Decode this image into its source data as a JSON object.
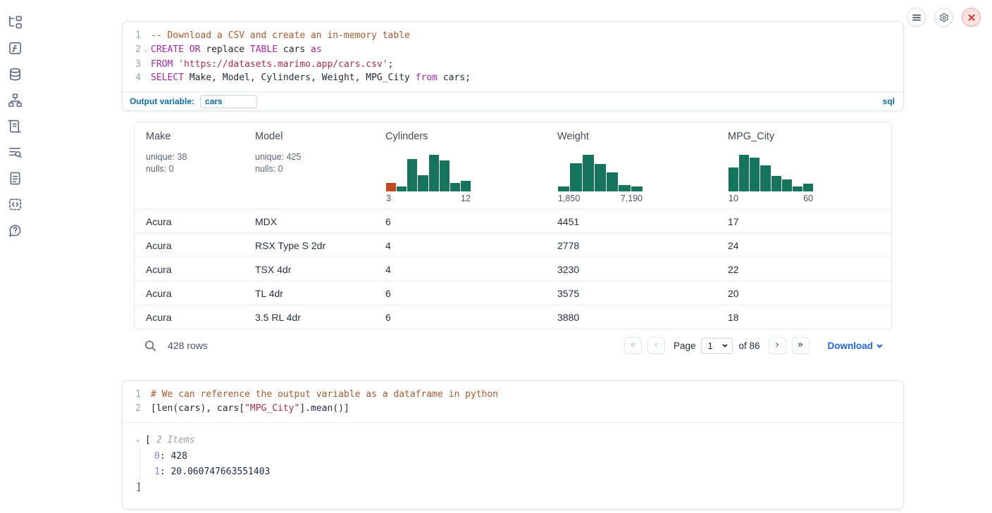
{
  "sidebar": {
    "items": [
      {
        "id": "file-explorer",
        "icon": "file-tree-icon"
      },
      {
        "id": "functions",
        "icon": "function-square-icon"
      },
      {
        "id": "data-sources",
        "icon": "database-icon"
      },
      {
        "id": "dependency-graph",
        "icon": "network-icon"
      },
      {
        "id": "scratchpad",
        "icon": "scroll-icon"
      },
      {
        "id": "logs",
        "icon": "text-search-icon"
      },
      {
        "id": "documentation",
        "icon": "file-text-icon"
      },
      {
        "id": "snippets",
        "icon": "code-box-icon"
      },
      {
        "id": "help",
        "icon": "help-circle-icon"
      }
    ]
  },
  "top_actions": {
    "menu_icon": "hamburger-menu-icon",
    "settings_icon": "gear-icon",
    "close_icon": "close-x-icon"
  },
  "sql_cell": {
    "lines": [
      {
        "num": "1",
        "fold": false,
        "tokens": [
          {
            "c": "comment",
            "t": "-- Download a CSV and create an in-memory table"
          }
        ]
      },
      {
        "num": "2",
        "fold": true,
        "tokens": [
          {
            "c": "kw",
            "t": "CREATE"
          },
          {
            "c": "plain",
            "t": " "
          },
          {
            "c": "kw",
            "t": "OR"
          },
          {
            "c": "plain",
            "t": " replace "
          },
          {
            "c": "kw",
            "t": "TABLE"
          },
          {
            "c": "plain",
            "t": " cars "
          },
          {
            "c": "kw",
            "t": "as"
          }
        ]
      },
      {
        "num": "3",
        "fold": false,
        "tokens": [
          {
            "c": "kw",
            "t": "FROM"
          },
          {
            "c": "plain",
            "t": " "
          },
          {
            "c": "str",
            "t": "'https://datasets.marimo.app/cars.csv'"
          },
          {
            "c": "plain",
            "t": ";"
          }
        ]
      },
      {
        "num": "4",
        "fold": false,
        "tokens": [
          {
            "c": "kw",
            "t": "SELECT"
          },
          {
            "c": "plain",
            "t": " Make, Model, Cylinders, Weight, MPG_City "
          },
          {
            "c": "kw",
            "t": "from"
          },
          {
            "c": "plain",
            "t": " cars;"
          }
        ]
      }
    ],
    "output_variable_label": "Output variable:",
    "output_variable_value": "cars",
    "language_badge": "sql"
  },
  "table": {
    "columns": [
      {
        "label": "Make",
        "stats": [
          "unique: 38",
          "nulls: 0"
        ]
      },
      {
        "label": "Model",
        "stats": [
          "unique: 425",
          "nulls: 0"
        ]
      },
      {
        "label": "Cylinders",
        "histogram": 0
      },
      {
        "label": "Weight",
        "histogram": 1
      },
      {
        "label": "MPG_City",
        "histogram": 2
      }
    ],
    "rows": [
      [
        "Acura",
        "MDX",
        "6",
        "4451",
        "17"
      ],
      [
        "Acura",
        "RSX Type S 2dr",
        "4",
        "2778",
        "24"
      ],
      [
        "Acura",
        "TSX 4dr",
        "4",
        "3230",
        "22"
      ],
      [
        "Acura",
        "TL 4dr",
        "6",
        "3575",
        "20"
      ],
      [
        "Acura",
        "3.5 RL 4dr",
        "6",
        "3880",
        "18"
      ]
    ],
    "footer": {
      "row_count": "428 rows",
      "first_icon": "«",
      "prev_icon": "‹",
      "next_icon": "›",
      "last_icon": "»",
      "page_label": "Page",
      "page_value": "1",
      "page_total": "of 86",
      "download_label": "Download"
    }
  },
  "chart_data": [
    {
      "type": "bar",
      "title": "Cylinders column histogram",
      "values_relative_pct": [
        24,
        13,
        88,
        45,
        100,
        84,
        24,
        30
      ],
      "x_min_label": "3",
      "x_max_label": "12",
      "bar_color": "#17745c",
      "first_bar_color": "#c2491f",
      "legend": "none",
      "grid": false
    },
    {
      "type": "bar",
      "title": "Weight column histogram",
      "values_relative_pct": [
        13,
        78,
        100,
        76,
        52,
        17,
        13
      ],
      "x_min_label": "1,850",
      "x_max_label": "7,190",
      "bar_color": "#17745c",
      "legend": "none",
      "grid": false
    },
    {
      "type": "bar",
      "title": "MPG_City column histogram",
      "values_relative_pct": [
        65,
        100,
        93,
        72,
        42,
        32,
        13,
        21
      ],
      "x_min_label": "10",
      "x_max_label": "60",
      "bar_color": "#17745c",
      "legend": "none",
      "grid": false
    }
  ],
  "python_cell": {
    "lines": [
      {
        "num": "1",
        "fold": false,
        "tokens": [
          {
            "c": "comment",
            "t": "# We can reference the output variable as a dataframe in python"
          }
        ]
      },
      {
        "num": "2",
        "fold": false,
        "tokens": [
          {
            "c": "plain",
            "t": "[len(cars), cars["
          },
          {
            "c": "str",
            "t": "\"MPG_City\""
          },
          {
            "c": "plain",
            "t": "].mean()]"
          }
        ]
      }
    ]
  },
  "output_tree": {
    "caret_icon": "⌄",
    "open_bracket": "[",
    "items_label": "2 Items",
    "entries": [
      {
        "key": "0",
        "sep": ": ",
        "value": "428"
      },
      {
        "key": "1",
        "sep": ": ",
        "value": "20.060747663551403"
      }
    ],
    "close_bracket": "]"
  },
  "colors": {
    "accent_blue": "#0b6ba8",
    "link_blue": "#2563eb",
    "hist_green": "#17745c",
    "hist_orange": "#c2491f",
    "close_red": "#dc2626"
  }
}
